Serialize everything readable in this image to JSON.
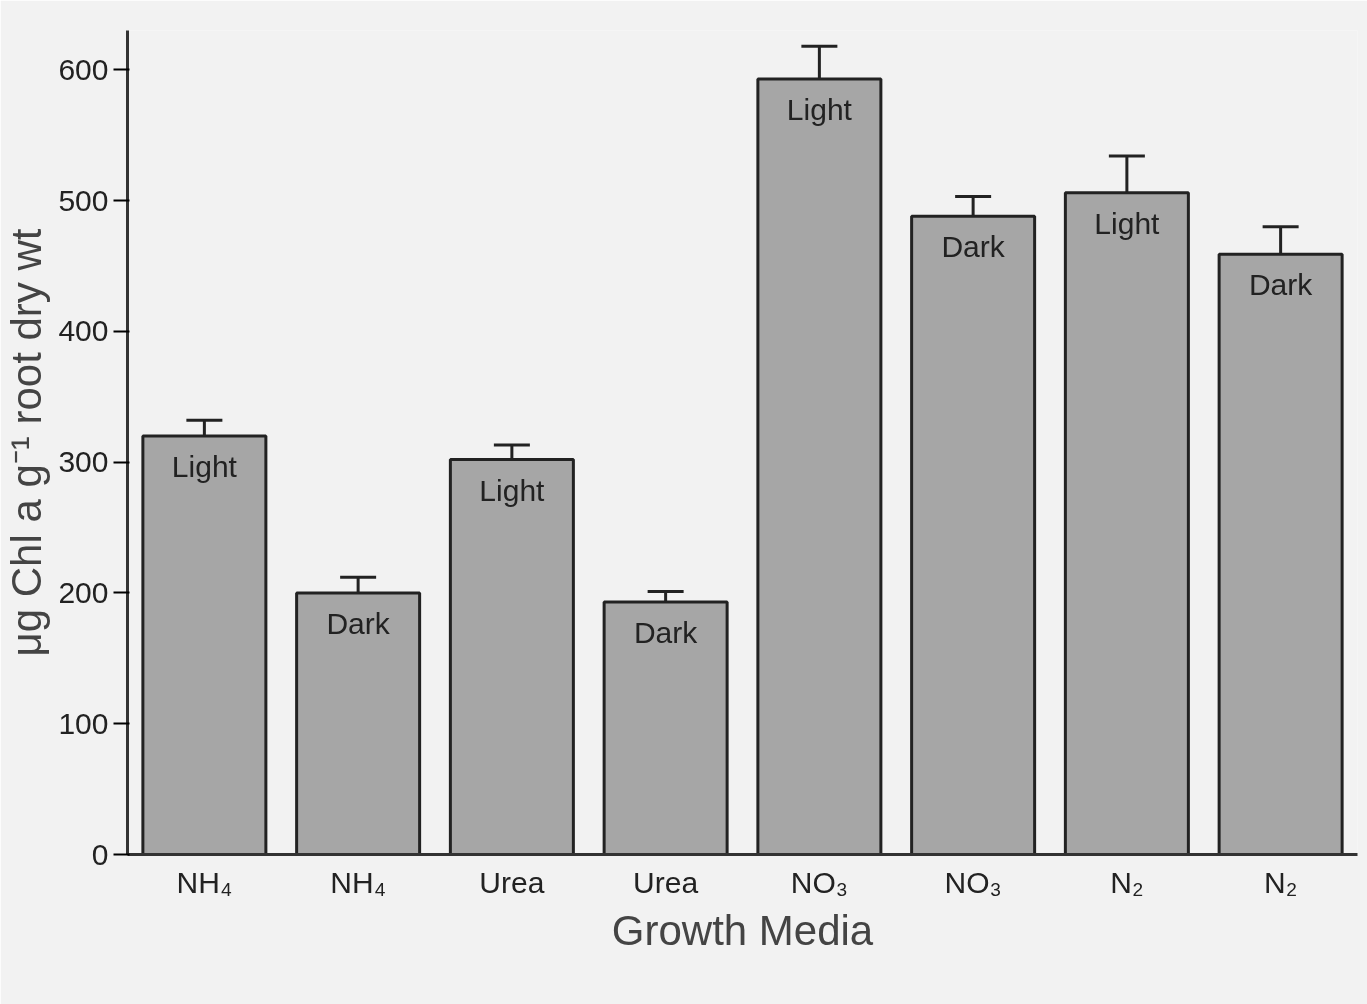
{
  "chart_data": {
    "type": "bar",
    "xlabel": "Growth Media",
    "ylabel": "μg Chl a g⁻¹ root dry wt",
    "categories": [
      "NH₄",
      "NH₄",
      "Urea",
      "Urea",
      "NO₃",
      "NO₃",
      "N₂",
      "N₂"
    ],
    "series": [
      {
        "color": "#a6a6a6",
        "values": [
          320,
          200,
          302,
          193,
          593,
          488,
          506,
          459
        ],
        "value_labels": [
          "Light",
          "Dark",
          "Light",
          "Dark",
          "Light",
          "Dark",
          "Light",
          "Dark"
        ],
        "errors": [
          [
            320,
            332
          ],
          [
            200,
            212
          ],
          [
            302,
            313
          ],
          [
            193,
            201
          ],
          [
            593,
            618
          ],
          [
            488,
            503
          ],
          [
            506,
            534
          ],
          [
            459,
            480
          ]
        ]
      }
    ],
    "ylim": [
      0,
      630
    ],
    "yticks": [
      0,
      100,
      200,
      300,
      400,
      500,
      600
    ],
    "grid": false
  }
}
